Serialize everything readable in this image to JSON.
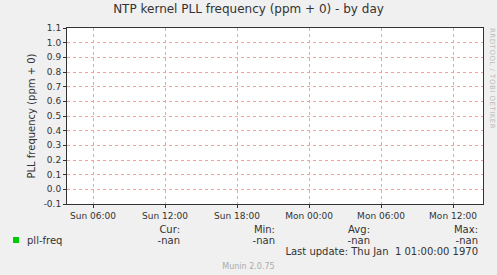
{
  "chart_data": {
    "type": "line",
    "title": "NTP kernel PLL frequency (ppm + 0) - by day",
    "y_label": "PLL frequency (ppm + 0)",
    "x": [],
    "series": [
      {
        "name": "pll-freq",
        "color": "#00cc00",
        "values": []
      }
    ],
    "xlim": [
      3.83,
      38.5
    ],
    "xticks": [
      {
        "value": 6,
        "label": "Sun 06:00"
      },
      {
        "value": 12,
        "label": "Sun 12:00"
      },
      {
        "value": 18,
        "label": "Sun 18:00"
      },
      {
        "value": 24,
        "label": "Mon 00:00"
      },
      {
        "value": 30,
        "label": "Mon 06:00"
      },
      {
        "value": 36,
        "label": "Mon 12:00"
      }
    ],
    "ylim": [
      -0.1,
      1.1
    ],
    "yticks": [
      -0.1,
      {
        "value": 0,
        "label": "0.0"
      },
      0.1,
      0.2,
      0.3,
      0.4,
      0.5,
      0.6,
      0.7,
      0.8,
      0.9,
      {
        "value": 1,
        "label": "1.0"
      },
      1.1
    ],
    "grid": true,
    "legend_table": {
      "columns": [
        "Cur:",
        "Min:",
        "Avg:",
        "Max:"
      ],
      "rows": [
        {
          "name": "pll-freq",
          "cells": [
            "-nan",
            "-nan",
            "-nan",
            "-nan"
          ]
        }
      ]
    },
    "last_update": "Last update: Thu Jan  1 01:00:00 1970",
    "footer": "Munin 2.0.75",
    "watermark": "RRDTOOL / TOBI OETIKER"
  }
}
